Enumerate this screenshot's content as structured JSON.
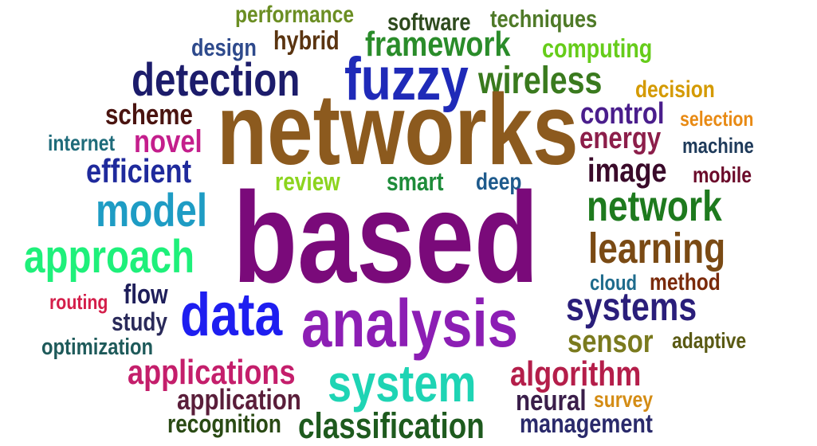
{
  "words": [
    {
      "text": "performance",
      "color": "#6b8e23"
    },
    {
      "text": "software",
      "color": "#2e4a1e"
    },
    {
      "text": "techniques",
      "color": "#4f7a28"
    },
    {
      "text": "hybrid",
      "color": "#5a3410"
    },
    {
      "text": "framework",
      "color": "#2a8c2a"
    },
    {
      "text": "design",
      "color": "#2e4a8c"
    },
    {
      "text": "computing",
      "color": "#66cc1a"
    },
    {
      "text": "detection",
      "color": "#1c1c6b"
    },
    {
      "text": "fuzzy",
      "color": "#1f2ab8"
    },
    {
      "text": "wireless",
      "color": "#3a7a1e"
    },
    {
      "text": "decision",
      "color": "#d49a00"
    },
    {
      "text": "scheme",
      "color": "#4a1410"
    },
    {
      "text": "networks",
      "color": "#8c5a1e"
    },
    {
      "text": "control",
      "color": "#4a1e8c"
    },
    {
      "text": "selection",
      "color": "#e88a14"
    },
    {
      "text": "internet",
      "color": "#1e6b7a"
    },
    {
      "text": "novel",
      "color": "#c41e8c"
    },
    {
      "text": "energy",
      "color": "#8c1e4a"
    },
    {
      "text": "machine",
      "color": "#1e3a5a"
    },
    {
      "text": "efficient",
      "color": "#1f2a9c"
    },
    {
      "text": "image",
      "color": "#3a0a2a"
    },
    {
      "text": "mobile",
      "color": "#6b0a2a"
    },
    {
      "text": "review",
      "color": "#8cd41e"
    },
    {
      "text": "smart",
      "color": "#1e8c3a"
    },
    {
      "text": "deep",
      "color": "#1e5a8c"
    },
    {
      "text": "model",
      "color": "#1e9cc4"
    },
    {
      "text": "network",
      "color": "#1e7a1e"
    },
    {
      "text": "based",
      "color": "#7a0a7a"
    },
    {
      "text": "approach",
      "color": "#1ef07a"
    },
    {
      "text": "learning",
      "color": "#7a4a14"
    },
    {
      "text": "cloud",
      "color": "#1e6b8c"
    },
    {
      "text": "method",
      "color": "#7a2a0a"
    },
    {
      "text": "routing",
      "color": "#d41e4a"
    },
    {
      "text": "flow",
      "color": "#1e1e5a"
    },
    {
      "text": "data",
      "color": "#1e1ef0"
    },
    {
      "text": "analysis",
      "color": "#8c1eb4"
    },
    {
      "text": "systems",
      "color": "#2a1e7a"
    },
    {
      "text": "study",
      "color": "#2a2a5a"
    },
    {
      "text": "optimization",
      "color": "#1e5a5a"
    },
    {
      "text": "sensor",
      "color": "#7a7a1e"
    },
    {
      "text": "adaptive",
      "color": "#5a5a14"
    },
    {
      "text": "applications",
      "color": "#c41e6b"
    },
    {
      "text": "system",
      "color": "#1ed4b4"
    },
    {
      "text": "algorithm",
      "color": "#b41e4a"
    },
    {
      "text": "application",
      "color": "#5a1e3a"
    },
    {
      "text": "neural",
      "color": "#3a1e4a"
    },
    {
      "text": "survey",
      "color": "#d48c14"
    },
    {
      "text": "recognition",
      "color": "#2a4a14"
    },
    {
      "text": "classification",
      "color": "#1e5a1e"
    },
    {
      "text": "management",
      "color": "#2a2a6b"
    }
  ]
}
